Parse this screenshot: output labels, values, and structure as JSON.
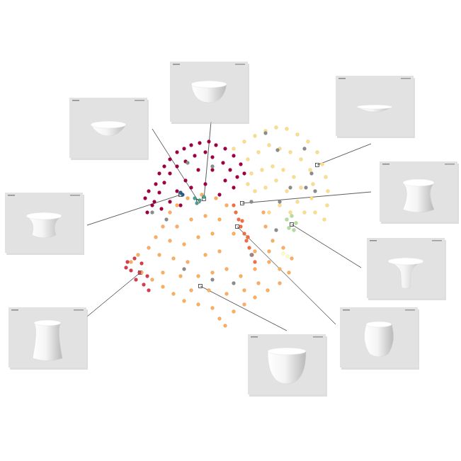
{
  "chart_data": {
    "type": "scatter",
    "xlim": [
      0,
      310
    ],
    "ylim": [
      0,
      300
    ],
    "tick_labels": false,
    "marker": "circle",
    "series": [
      {
        "color": "#9e0142",
        "x": [
          40,
          35,
          45,
          38,
          50,
          55,
          62,
          70,
          80,
          90,
          100,
          112,
          125,
          135,
          148,
          160,
          170,
          175,
          165,
          155,
          145,
          130,
          120,
          105,
          92,
          80,
          70,
          62,
          55,
          48,
          58,
          70,
          80,
          92,
          110,
          130,
          148,
          120,
          100,
          85,
          160,
          140
        ],
        "y": [
          200,
          190,
          180,
          170,
          210,
          225,
          235,
          245,
          255,
          260,
          265,
          268,
          270,
          265,
          260,
          250,
          238,
          225,
          220,
          230,
          240,
          248,
          255,
          250,
          242,
          235,
          225,
          212,
          198,
          185,
          175,
          185,
          200,
          215,
          230,
          230,
          215,
          210,
          205,
          180,
          205,
          195
        ]
      },
      {
        "color": "#fee08b",
        "x": [
          160,
          175,
          190,
          205,
          220,
          235,
          250,
          265,
          278,
          285,
          290,
          293,
          292,
          288,
          275,
          270,
          272,
          268,
          255,
          240,
          225,
          210,
          195,
          180,
          185,
          200,
          215,
          230,
          245,
          255,
          250,
          260,
          220,
          205,
          190,
          235,
          225,
          210,
          240,
          180
        ],
        "y": [
          260,
          270,
          278,
          285,
          290,
          288,
          280,
          270,
          255,
          238,
          220,
          200,
          180,
          160,
          170,
          190,
          210,
          230,
          245,
          255,
          260,
          265,
          255,
          245,
          225,
          230,
          235,
          230,
          220,
          205,
          185,
          170,
          215,
          205,
          200,
          200,
          180,
          170,
          170,
          210
        ]
      },
      {
        "color": "#fdae61",
        "x": [
          80,
          95,
          115,
          135,
          150,
          70,
          60,
          50,
          40,
          25,
          15,
          30,
          45,
          60,
          75,
          90,
          110,
          130,
          140,
          148,
          160,
          175,
          190,
          208,
          225,
          238,
          242,
          230,
          215,
          205,
          202,
          80,
          100,
          120,
          140,
          70,
          90,
          110,
          130,
          55,
          75,
          95,
          120,
          140,
          60,
          85,
          110,
          130,
          150,
          170,
          190,
          210,
          225,
          100,
          125,
          150,
          175,
          195,
          190,
          210,
          180,
          160
        ],
        "y": [
          180,
          190,
          195,
          190,
          180,
          170,
          150,
          135,
          120,
          110,
          100,
          85,
          75,
          65,
          55,
          45,
          40,
          35,
          20,
          10,
          30,
          40,
          50,
          60,
          70,
          85,
          105,
          120,
          130,
          150,
          170,
          150,
          160,
          165,
          160,
          130,
          125,
          135,
          140,
          110,
          105,
          100,
          110,
          115,
          85,
          80,
          80,
          85,
          90,
          80,
          90,
          100,
          90,
          60,
          60,
          55,
          60,
          70,
          115,
          115,
          135,
          140
        ]
      },
      {
        "color": "#d53e4f",
        "x": [
          10,
          20,
          30,
          15,
          27,
          38,
          22,
          33,
          40,
          8
        ],
        "y": [
          100,
          105,
          98,
          88,
          85,
          80,
          75,
          68,
          60,
          92
        ]
      },
      {
        "color": "#f46d43",
        "x": [
          160,
          163,
          167,
          170,
          175,
          178,
          182,
          186,
          190,
          172,
          180
        ],
        "y": [
          180,
          170,
          160,
          150,
          140,
          130,
          120,
          110,
          100,
          158,
          135
        ]
      },
      {
        "color": "#4d9e8e",
        "x": [
          105,
          112,
          118,
          108
        ],
        "y": [
          190,
          187,
          192,
          183
        ]
      },
      {
        "color": "#2b5c8a",
        "x": [
          85,
          88
        ],
        "y": [
          198,
          195
        ]
      },
      {
        "color": "#b3dfa0",
        "x": [
          235,
          242,
          248,
          238,
          245
        ],
        "y": [
          160,
          165,
          155,
          148,
          145
        ]
      },
      {
        "color": "#ffffbf",
        "x": [
          230,
          236
        ],
        "y": [
          112,
          108
        ]
      },
      {
        "color": "#8c8c8c",
        "x": [
          205,
          222,
          260,
          270,
          262,
          275,
          240,
          185,
          220,
          160,
          130,
          90,
          65,
          45,
          185,
          95,
          130,
          225
        ],
        "y": [
          282,
          258,
          260,
          225,
          205,
          200,
          205,
          110,
          145,
          70,
          75,
          90,
          160,
          170,
          185,
          240,
          235,
          185
        ]
      }
    ]
  }
}
